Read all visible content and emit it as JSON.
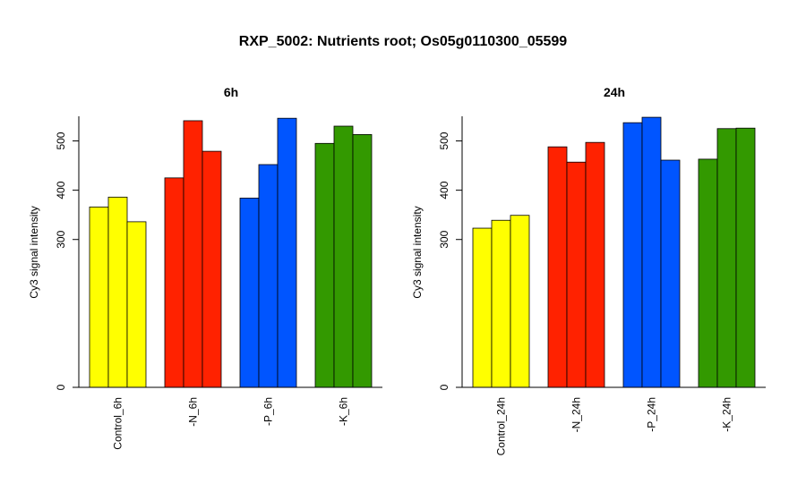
{
  "title": "RXP_5002: Nutrients root; Os05g0110300_05599",
  "chart_data": [
    {
      "type": "bar",
      "title": "6h",
      "ylabel": "Cy3 signal intensity",
      "yticks": [
        0,
        300,
        400,
        500
      ],
      "ylim": [
        0,
        550
      ],
      "groups": [
        {
          "label": "Control_6h",
          "color": "#ffff00",
          "values": [
            366,
            386,
            336
          ]
        },
        {
          "label": "-N_6h",
          "color": "#ff2200",
          "values": [
            425,
            541,
            479
          ]
        },
        {
          "label": "-P_6h",
          "color": "#0055ff",
          "values": [
            384,
            452,
            546
          ]
        },
        {
          "label": "-K_6h",
          "color": "#339900",
          "values": [
            495,
            530,
            513
          ]
        }
      ]
    },
    {
      "type": "bar",
      "title": "24h",
      "ylabel": "Cy3 signal intensity",
      "yticks": [
        0,
        300,
        400,
        500
      ],
      "ylim": [
        0,
        550
      ],
      "groups": [
        {
          "label": "Control_24h",
          "color": "#ffff00",
          "values": [
            323,
            339,
            349
          ]
        },
        {
          "label": "-N_24h",
          "color": "#ff2200",
          "values": [
            488,
            457,
            497
          ]
        },
        {
          "label": "-P_24h",
          "color": "#0055ff",
          "values": [
            537,
            548,
            461
          ]
        },
        {
          "label": "-K_24h",
          "color": "#339900",
          "values": [
            463,
            525,
            526
          ]
        }
      ]
    }
  ]
}
